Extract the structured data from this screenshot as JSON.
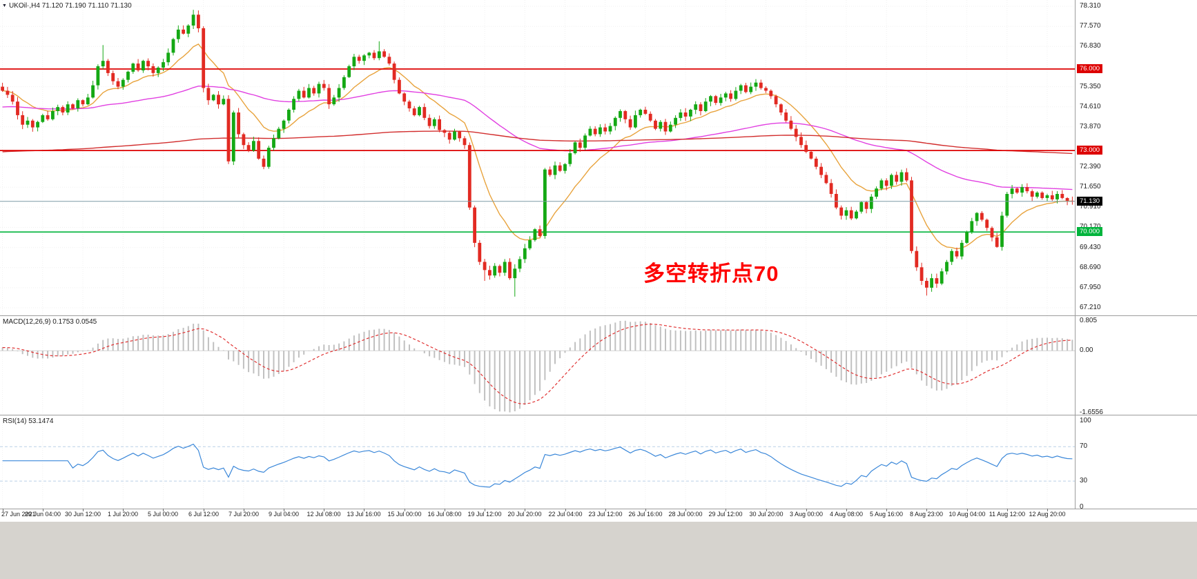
{
  "header": {
    "dropdown_icon": "▼",
    "text": "UKOil·,H4 71.120 71.190 71.110 71.130"
  },
  "panels": {
    "macd": {
      "label": "MACD(12,26,9) 0.1753 0.0545"
    },
    "rsi": {
      "label": "RSI(14) 53.1474"
    }
  },
  "annotation": {
    "text": "多空转折点70",
    "color": "#fe0000"
  },
  "chart_data": {
    "type": "candlestick",
    "symbol": "UKOil",
    "timeframe": "H4",
    "quote": {
      "open": 71.12,
      "high": 71.19,
      "low": 71.11,
      "close": 71.13
    },
    "grid_color": "#f0f0f0",
    "candle_colors": {
      "up": "#14a814",
      "down": "#e22a22"
    },
    "price_axis": {
      "ylim": [
        66.93,
        78.54
      ],
      "labels": [
        {
          "v": 78.31,
          "t": "78.310"
        },
        {
          "v": 77.57,
          "t": "77.570"
        },
        {
          "v": 76.83,
          "t": "76.830"
        },
        {
          "v": 75.35,
          "t": "75.350"
        },
        {
          "v": 74.61,
          "t": "74.610"
        },
        {
          "v": 73.87,
          "t": "73.870"
        },
        {
          "v": 72.39,
          "t": "72.390"
        },
        {
          "v": 71.65,
          "t": "71.650"
        },
        {
          "v": 70.91,
          "t": "70.910"
        },
        {
          "v": 70.17,
          "t": "70.170"
        },
        {
          "v": 69.43,
          "t": "69.430"
        },
        {
          "v": 68.69,
          "t": "68.690"
        },
        {
          "v": 67.95,
          "t": "67.950"
        },
        {
          "v": 67.21,
          "t": "67.210"
        }
      ]
    },
    "time_axis": {
      "bars_per_tick": 8,
      "labels": [
        "27 Jun 2021",
        "29 Jun 04:00",
        "30 Jun 12:00",
        "1 Jul 20:00",
        "5 Jul 00:00",
        "6 Jul 12:00",
        "7 Jul 20:00",
        "9 Jul 04:00",
        "12 Jul 08:00",
        "13 Jul 16:00",
        "15 Jul 00:00",
        "16 Jul 08:00",
        "19 Jul 12:00",
        "20 Jul 20:00",
        "22 Jul 04:00",
        "23 Jul 12:00",
        "26 Jul 16:00",
        "28 Jul 00:00",
        "29 Jul 12:00",
        "30 Jul 20:00",
        "3 Aug 00:00",
        "4 Aug 08:00",
        "5 Aug 16:00",
        "8 Aug 23:00",
        "10 Aug 04:00",
        "11 Aug 12:00",
        "12 Aug 20:00"
      ]
    },
    "first_open": 75.35,
    "closes": [
      75.2,
      75.05,
      74.8,
      74.3,
      73.95,
      74.1,
      73.85,
      74.05,
      74.3,
      74.15,
      74.45,
      74.6,
      74.4,
      74.7,
      74.55,
      74.85,
      74.7,
      74.95,
      75.4,
      76.1,
      76.3,
      75.85,
      75.55,
      75.35,
      75.6,
      75.9,
      76.2,
      75.95,
      76.3,
      76.1,
      75.85,
      76.05,
      76.25,
      76.6,
      77.1,
      77.45,
      77.3,
      77.6,
      78.0,
      77.5,
      75.3,
      74.85,
      75.05,
      74.7,
      74.9,
      72.6,
      74.4,
      73.6,
      73.2,
      73.0,
      73.35,
      72.7,
      72.4,
      73.1,
      73.45,
      73.8,
      74.1,
      74.5,
      74.9,
      75.2,
      74.95,
      75.3,
      75.1,
      75.45,
      75.3,
      74.7,
      74.95,
      75.3,
      75.7,
      76.1,
      76.45,
      76.3,
      76.5,
      76.6,
      76.4,
      76.65,
      76.45,
      76.2,
      75.6,
      75.1,
      74.8,
      74.55,
      74.3,
      74.6,
      74.2,
      73.9,
      74.15,
      73.75,
      73.65,
      73.4,
      73.7,
      73.45,
      73.2,
      70.9,
      69.6,
      68.9,
      68.6,
      68.4,
      68.75,
      68.5,
      68.9,
      68.3,
      68.65,
      69.0,
      69.4,
      69.7,
      70.1,
      69.85,
      72.3,
      72.1,
      72.45,
      72.25,
      72.5,
      72.9,
      73.3,
      73.1,
      73.55,
      73.8,
      73.6,
      73.85,
      73.7,
      73.9,
      74.2,
      74.45,
      74.15,
      73.85,
      74.3,
      74.5,
      74.35,
      74.1,
      73.8,
      74.05,
      73.7,
      73.95,
      74.2,
      74.4,
      74.25,
      74.5,
      74.7,
      74.45,
      74.8,
      75.0,
      74.75,
      74.95,
      75.1,
      74.9,
      75.2,
      75.4,
      75.15,
      75.35,
      75.5,
      75.3,
      75.2,
      75.0,
      74.7,
      74.4,
      74.1,
      73.8,
      73.5,
      73.2,
      72.95,
      72.7,
      72.4,
      72.1,
      71.8,
      71.4,
      70.9,
      70.6,
      70.8,
      70.5,
      70.75,
      71.1,
      70.85,
      71.3,
      71.6,
      71.9,
      71.7,
      72.1,
      71.85,
      72.2,
      71.9,
      69.3,
      68.7,
      68.2,
      67.95,
      68.3,
      68.1,
      68.55,
      68.9,
      69.3,
      69.1,
      69.6,
      70.0,
      70.4,
      70.7,
      70.45,
      70.15,
      69.8,
      69.45,
      70.6,
      71.4,
      71.6,
      71.45,
      71.65,
      71.5,
      71.3,
      71.45,
      71.25,
      71.35,
      71.2,
      71.4,
      71.25,
      71.15,
      71.13
    ],
    "wick_overrides": {
      "high": {
        "20": 76.88,
        "38": 78.18,
        "75": 77.02
      },
      "low": {
        "96": 68.2,
        "102": 67.62,
        "184": 67.66
      }
    },
    "hlines": [
      {
        "value": 76.0,
        "label": "76.000",
        "color": "#dd0000"
      },
      {
        "value": 73.0,
        "label": "73.000",
        "color": "#dd0000"
      },
      {
        "value": 70.0,
        "label": "70.000",
        "color": "#00b43c"
      }
    ],
    "price_line": {
      "value": 71.13,
      "label": "71.130",
      "color": "#7d9aa5",
      "badge_bg": "#000000"
    },
    "moving_averages": [
      {
        "name": "fast",
        "period": 13,
        "color": "#e8a33d"
      },
      {
        "name": "medium",
        "period": 80,
        "seed": 74.6,
        "color": "#e13fe1"
      },
      {
        "name": "slow",
        "period": 400,
        "seed": 72.95,
        "color": "#d22d2d"
      }
    ],
    "macd": {
      "fast": 12,
      "slow": 26,
      "signal": 9,
      "display": [
        0.1753,
        0.0545
      ],
      "range": [
        -1.6556,
        0.805
      ],
      "ylim": [
        -1.72,
        0.95
      ],
      "axis_labels": [
        {
          "v": 0.805,
          "t": "0.805"
        },
        {
          "v": 0.0,
          "t": "0.00"
        },
        {
          "v": -1.6556,
          "t": "-1.6556"
        }
      ],
      "hist_color": "#c0c0c0",
      "signal_color": "#e03030"
    },
    "rsi": {
      "period": 14,
      "display": 53.1474,
      "levels": [
        70,
        30
      ],
      "vis_range": [
        23,
        73
      ],
      "ylim": [
        -2,
        107.2
      ],
      "axis_labels": [
        {
          "v": 100,
          "t": "100"
        },
        {
          "v": 70,
          "t": "70"
        },
        {
          "v": 30,
          "t": "30"
        },
        {
          "v": 0,
          "t": "0"
        }
      ],
      "line_color": "#3a87d9",
      "level_color": "#b9cfe7"
    }
  }
}
